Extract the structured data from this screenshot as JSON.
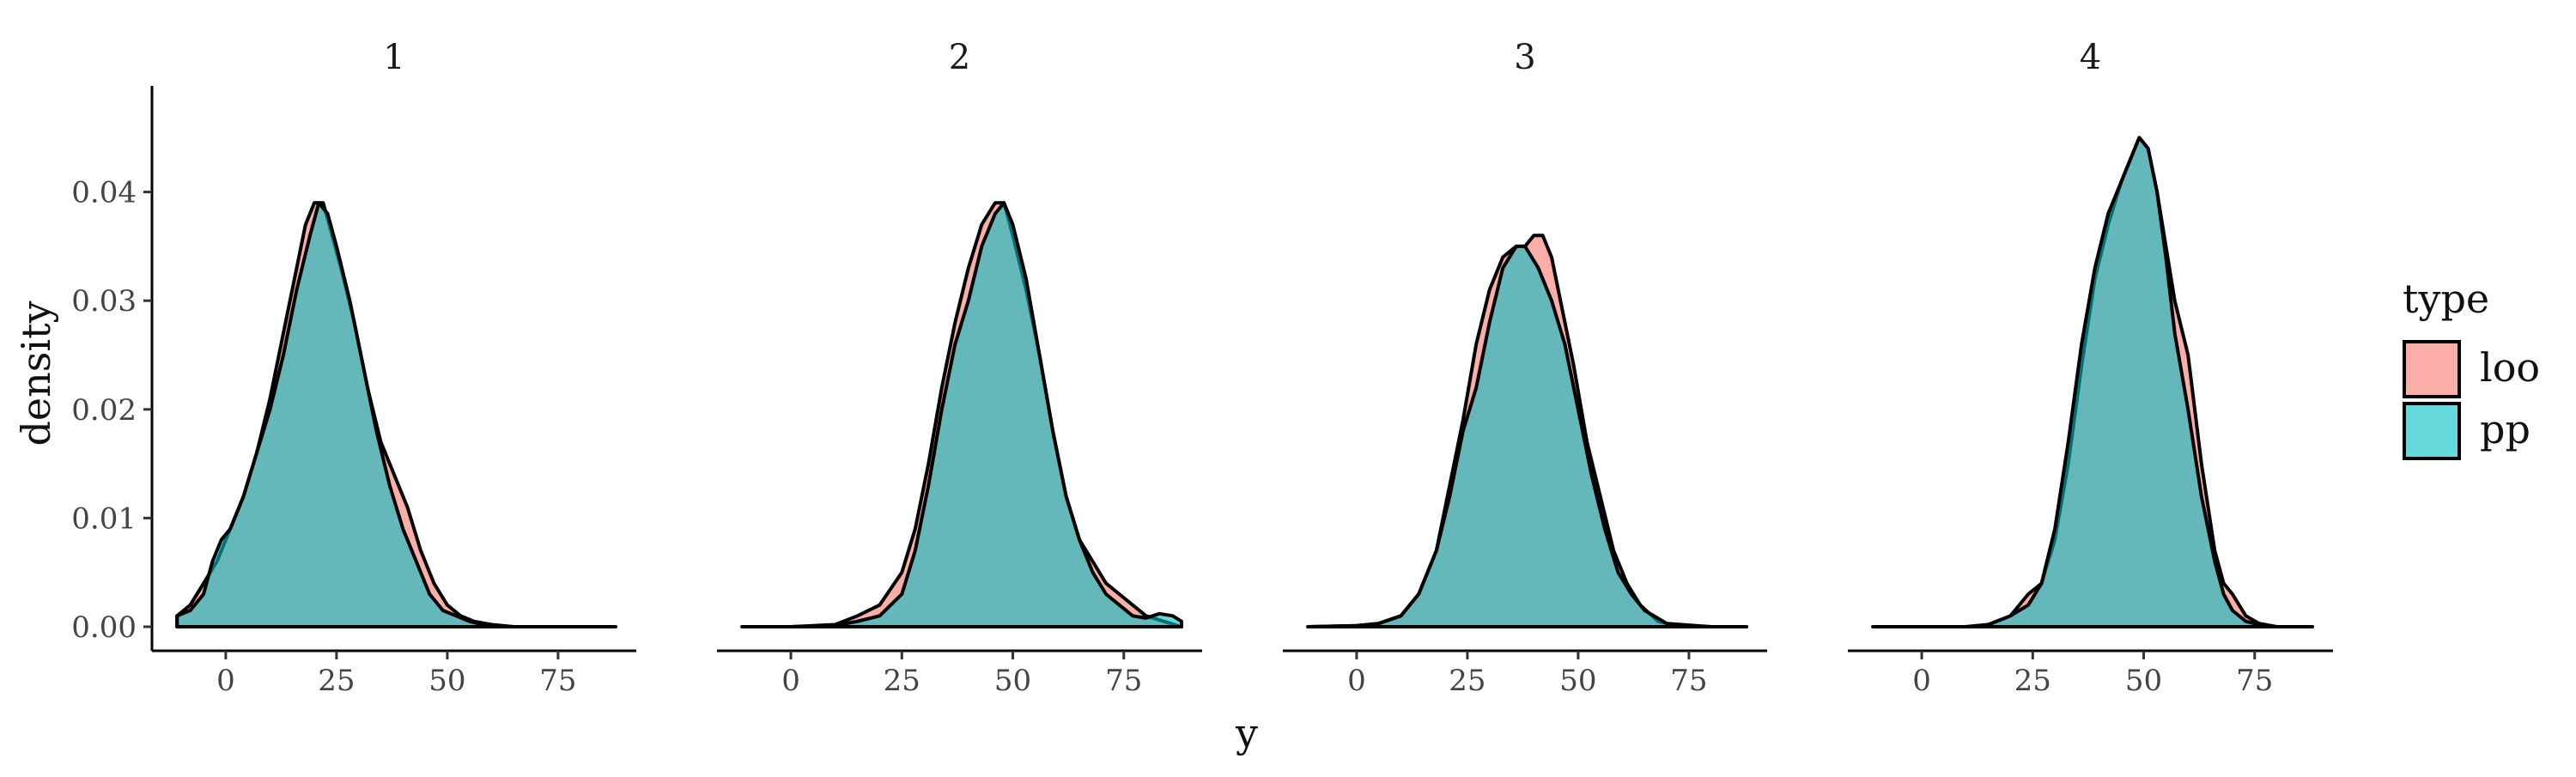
{
  "chart_data": {
    "type": "area",
    "subtype": "faceted-density",
    "xlabel": "y",
    "ylabel": "density",
    "xlim": [
      -12,
      88
    ],
    "ylim": [
      0,
      0.047
    ],
    "x_ticks": [
      0,
      25,
      50,
      75
    ],
    "x_tick_labels": [
      "0",
      "25",
      "50",
      "75"
    ],
    "y_ticks": [
      0,
      0.01,
      0.02,
      0.03,
      0.04
    ],
    "y_tick_labels": [
      "0.00",
      "0.01",
      "0.02",
      "0.03",
      "0.04"
    ],
    "grid": false,
    "legend": {
      "title": "type",
      "placement": "right",
      "entries": [
        {
          "label": "loo",
          "color": "#F8766D"
        },
        {
          "label": "pp",
          "color": "#00BFC4"
        }
      ]
    },
    "fill_opacity": 0.6,
    "outline_color": "#000000",
    "facets": [
      {
        "label": "1",
        "series": [
          {
            "name": "loo",
            "x": [
              -11,
              -8,
              -5,
              -2,
              1,
              4,
              7,
              10,
              13,
              16,
              18,
              20,
              22,
              24,
              26,
              29,
              32,
              35,
              38,
              41,
              44,
              47,
              50,
              53,
              56,
              60,
              65,
              70,
              80,
              88
            ],
            "y": [
              0.001,
              0.002,
              0.004,
              0.006,
              0.009,
              0.012,
              0.016,
              0.021,
              0.027,
              0.033,
              0.037,
              0.039,
              0.039,
              0.036,
              0.033,
              0.028,
              0.022,
              0.017,
              0.014,
              0.011,
              0.007,
              0.004,
              0.002,
              0.001,
              0.0005,
              0.0002,
              0,
              0,
              0,
              0
            ]
          },
          {
            "name": "pp",
            "x": [
              -11,
              -8,
              -5,
              -3,
              -1,
              1,
              4,
              7,
              10,
              13,
              16,
              19,
              21,
              23,
              25,
              28,
              31,
              34,
              37,
              40,
              43,
              46,
              49,
              52,
              55,
              58,
              62
            ],
            "y": [
              0.001,
              0.0015,
              0.003,
              0.006,
              0.008,
              0.009,
              0.012,
              0.016,
              0.02,
              0.025,
              0.031,
              0.036,
              0.039,
              0.038,
              0.035,
              0.03,
              0.024,
              0.018,
              0.013,
              0.009,
              0.006,
              0.003,
              0.0015,
              0.001,
              0.0005,
              0.0002,
              0
            ]
          }
        ]
      },
      {
        "label": "2",
        "series": [
          {
            "name": "loo",
            "x": [
              -11,
              0,
              10,
              15,
              20,
              25,
              28,
              31,
              34,
              37,
              40,
              43,
              46,
              48,
              50,
              53,
              56,
              59,
              62,
              65,
              68,
              71,
              74,
              77,
              80,
              84,
              88
            ],
            "y": [
              0,
              0,
              0.0002,
              0.001,
              0.002,
              0.005,
              0.009,
              0.015,
              0.022,
              0.028,
              0.033,
              0.037,
              0.039,
              0.039,
              0.036,
              0.031,
              0.025,
              0.018,
              0.012,
              0.008,
              0.006,
              0.004,
              0.003,
              0.002,
              0.001,
              0.0005,
              0
            ]
          },
          {
            "name": "pp",
            "x": [
              -11,
              0,
              10,
              15,
              20,
              25,
              28,
              31,
              34,
              37,
              40,
              43,
              46,
              48,
              50,
              53,
              56,
              59,
              62,
              65,
              68,
              71,
              74,
              77,
              80,
              83,
              86,
              88
            ],
            "y": [
              0,
              0,
              0.0001,
              0.0005,
              0.001,
              0.003,
              0.007,
              0.013,
              0.02,
              0.026,
              0.03,
              0.035,
              0.038,
              0.039,
              0.037,
              0.032,
              0.025,
              0.018,
              0.012,
              0.008,
              0.005,
              0.003,
              0.002,
              0.001,
              0.0008,
              0.0012,
              0.001,
              0.0005
            ]
          }
        ]
      },
      {
        "label": "3",
        "series": [
          {
            "name": "loo",
            "x": [
              -11,
              0,
              5,
              10,
              14,
              18,
              21,
              24,
              27,
              30,
              33,
              36,
              38,
              40,
              42,
              44,
              46,
              49,
              52,
              55,
              58,
              61,
              64,
              68,
              72,
              80,
              88
            ],
            "y": [
              0,
              0.0001,
              0.0003,
              0.001,
              0.003,
              0.007,
              0.013,
              0.019,
              0.026,
              0.031,
              0.034,
              0.035,
              0.035,
              0.036,
              0.036,
              0.034,
              0.03,
              0.024,
              0.017,
              0.012,
              0.007,
              0.004,
              0.002,
              0.0005,
              0.0001,
              0,
              0
            ]
          },
          {
            "name": "pp",
            "x": [
              -11,
              0,
              5,
              10,
              14,
              18,
              21,
              24,
              27,
              30,
              33,
              36,
              38,
              41,
              44,
              47,
              50,
              53,
              56,
              59,
              62,
              65,
              70,
              80,
              88
            ],
            "y": [
              0,
              0.0001,
              0.0003,
              0.001,
              0.003,
              0.007,
              0.012,
              0.018,
              0.022,
              0.028,
              0.033,
              0.035,
              0.035,
              0.033,
              0.03,
              0.026,
              0.02,
              0.014,
              0.009,
              0.005,
              0.003,
              0.0015,
              0.0003,
              0,
              0
            ]
          }
        ]
      },
      {
        "label": "4",
        "series": [
          {
            "name": "loo",
            "x": [
              -11,
              0,
              10,
              15,
              20,
              24,
              27,
              30,
              33,
              36,
              39,
              42,
              45,
              47,
              49,
              51,
              53,
              55,
              57,
              60,
              63,
              66,
              68,
              70,
              73,
              76,
              80,
              88
            ],
            "y": [
              0,
              0,
              0,
              0.0002,
              0.001,
              0.003,
              0.004,
              0.008,
              0.015,
              0.024,
              0.032,
              0.037,
              0.041,
              0.043,
              0.045,
              0.044,
              0.04,
              0.035,
              0.03,
              0.025,
              0.015,
              0.007,
              0.004,
              0.003,
              0.001,
              0.0003,
              0,
              0
            ]
          },
          {
            "name": "pp",
            "x": [
              -11,
              0,
              10,
              15,
              20,
              24,
              27,
              30,
              33,
              36,
              39,
              42,
              45,
              47,
              49,
              51,
              53,
              55,
              57,
              60,
              63,
              66,
              68,
              70,
              73,
              76,
              80,
              88
            ],
            "y": [
              0,
              0,
              0,
              0.0002,
              0.001,
              0.002,
              0.004,
              0.009,
              0.017,
              0.026,
              0.033,
              0.038,
              0.041,
              0.043,
              0.045,
              0.044,
              0.04,
              0.034,
              0.027,
              0.02,
              0.012,
              0.006,
              0.003,
              0.0015,
              0.0005,
              0.0002,
              0,
              0
            ]
          }
        ]
      }
    ]
  }
}
